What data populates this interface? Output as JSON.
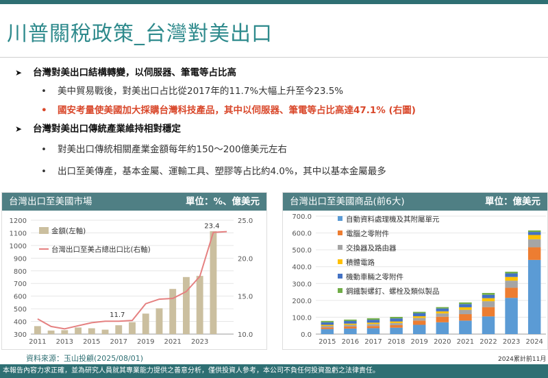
{
  "title": "川普關稅政策_台灣對美出口",
  "bullets": {
    "h1": "台灣對美出口結構轉變，以伺服器、筆電等占比高",
    "h1_items": [
      "美中貿易戰後，對美出口占比從2017年的11.7%大幅上升至今23.5%",
      "國安考量使美國加大採購台灣科技產品，其中以伺服器、筆電等占比高達47.1% (右圖)"
    ],
    "h2": "台灣對美出口傳統產業維持相對穩定",
    "h2_items": [
      "對美出口傳統相關產業金額每年約150～200億美元左右",
      "出口至美傳產，基本金屬、運輸工具、塑膠等占比約4.0%，其中以基本金屬最多"
    ]
  },
  "left_panel": {
    "title": "台灣出口至美國市場",
    "unit": "單位：%、億美元"
  },
  "right_panel": {
    "title": "台灣出口至美國商品(前6大)",
    "unit": "單位：億美元"
  },
  "source": "資料來源：玉山投顧(2025/08/01)",
  "note_2024": "2024累計前11月",
  "footer": "本報告內容力求正確，並為研究人員就其專業能力提供之善意分析，僅供投資人參考，本公司不負任何投資盈虧之法律責任。",
  "colors": {
    "teal": "#2e6f73",
    "bar_gold": "#cbbf9f",
    "line_red": "#e58080",
    "highlight_red": "#d9482b"
  },
  "chart_data": [
    {
      "type": "bar",
      "legend_position": "top-left",
      "x": [
        2011,
        2012,
        2013,
        2014,
        2015,
        2016,
        2017,
        2018,
        2019,
        2020,
        2021,
        2022,
        2023,
        2024,
        2025
      ],
      "x_tick_labels": [
        "2011",
        "2013",
        "2015",
        "2017",
        "2019",
        "2021",
        "2023"
      ],
      "y_left_ticks": [
        300,
        400,
        500,
        600,
        700,
        800,
        900,
        1000,
        1100,
        1200
      ],
      "y_left_range": [
        300,
        1200
      ],
      "y_right_ticks": [
        "10.0",
        "15.0",
        "20.0",
        "25.0"
      ],
      "y_right_range": [
        10,
        25
      ],
      "series": [
        {
          "name": "金額(左軸)",
          "axis": "left",
          "type": "bar",
          "values": [
            363,
            328,
            331,
            352,
            346,
            335,
            370,
            394,
            462,
            504,
            657,
            751,
            760,
            1113,
            null
          ]
        },
        {
          "name": "台灣出口至美占總出口比(右軸)",
          "axis": "right",
          "type": "line",
          "values": [
            12.0,
            11.0,
            10.7,
            11.1,
            11.5,
            11.7,
            11.7,
            11.8,
            14.0,
            14.6,
            14.7,
            15.6,
            17.6,
            23.4,
            23.5
          ]
        }
      ],
      "annotations": [
        {
          "x": 2017,
          "text": "11.7"
        },
        {
          "x": 2024,
          "text": "23.4"
        }
      ]
    },
    {
      "type": "bar",
      "stacked": true,
      "legend_position": "top-left",
      "categories": [
        "2015",
        "2016",
        "2017",
        "2018",
        "2019",
        "2020",
        "2021",
        "2022",
        "2023",
        "2024"
      ],
      "y_ticks": [
        "0.0",
        "100.0",
        "200.0",
        "300.0",
        "400.0",
        "500.0",
        "600.0",
        "700.0"
      ],
      "ylim": [
        0,
        700
      ],
      "series": [
        {
          "name": "自動資料處理機及其附屬單元",
          "color": "#5b9bd5",
          "values": [
            30,
            33,
            35,
            38,
            55,
            70,
            80,
            105,
            215,
            440
          ]
        },
        {
          "name": "電腦之零附件",
          "color": "#ed7d31",
          "values": [
            10,
            12,
            13,
            15,
            25,
            33,
            38,
            55,
            60,
            75
          ]
        },
        {
          "name": "交換器及路由器",
          "color": "#a5a5a5",
          "values": [
            9,
            10,
            12,
            13,
            16,
            20,
            26,
            35,
            42,
            48
          ]
        },
        {
          "name": "積體電路",
          "color": "#ffc000",
          "values": [
            6,
            7,
            8,
            9,
            10,
            12,
            15,
            18,
            22,
            25
          ]
        },
        {
          "name": "機動車輛之零附件",
          "color": "#4472c4",
          "values": [
            15,
            16,
            17,
            18,
            18,
            17,
            19,
            20,
            21,
            18
          ]
        },
        {
          "name": "鋼鐵製螺釘、螺栓及類似製品",
          "color": "#70ad47",
          "values": [
            8,
            8,
            9,
            9,
            8,
            8,
            10,
            11,
            10,
            9
          ]
        }
      ]
    }
  ]
}
